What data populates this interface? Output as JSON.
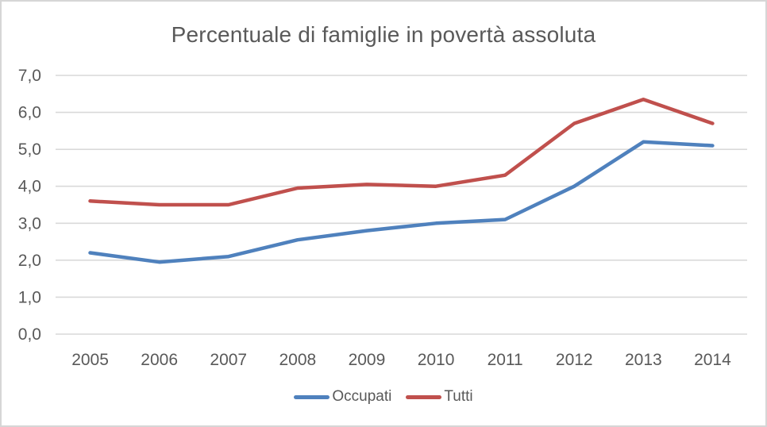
{
  "chart_data": {
    "type": "line",
    "title": "Percentuale di famiglie in povertà assoluta",
    "categories": [
      "2005",
      "2006",
      "2007",
      "2008",
      "2009",
      "2010",
      "2011",
      "2012",
      "2013",
      "2014"
    ],
    "series": [
      {
        "name": "Occupati",
        "color": "#4F81BD",
        "values": [
          2.2,
          1.95,
          2.1,
          2.55,
          2.8,
          3.0,
          3.1,
          4.0,
          5.2,
          5.1
        ]
      },
      {
        "name": "Tutti",
        "color": "#C0504D",
        "values": [
          3.6,
          3.5,
          3.5,
          3.95,
          4.05,
          4.0,
          4.3,
          5.7,
          6.35,
          5.7
        ]
      }
    ],
    "xlabel": "",
    "ylabel": "",
    "ylim": [
      0,
      7
    ],
    "y_tick_step": 1,
    "y_tick_labels_top_to_bottom": [
      "7,0",
      "6,0",
      "5,0",
      "4,0",
      "3,0",
      "2,0",
      "1,0",
      "0,0"
    ],
    "grid": true,
    "legend_position": "bottom",
    "colors": {
      "gridline": "#D9D9D9",
      "axis_text": "#595959",
      "title_text": "#595959",
      "background": "#FFFFFF",
      "frame_border": "#D6D6D6"
    }
  }
}
